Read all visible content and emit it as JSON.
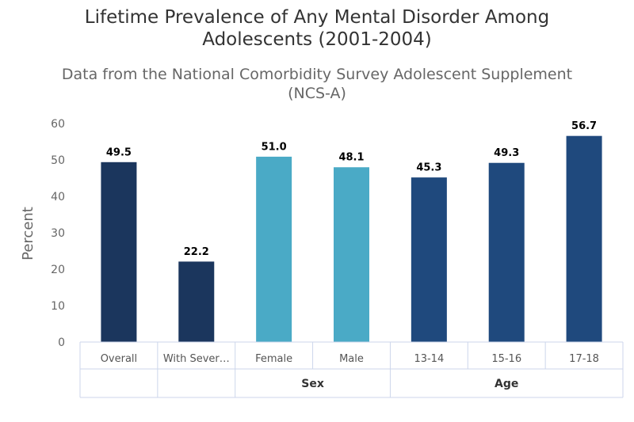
{
  "chart_data": {
    "type": "bar",
    "title_lines": [
      "Lifetime Prevalence of Any Mental Disorder Among",
      "Adolescents (2001-2004)"
    ],
    "subtitle_lines": [
      "Data from the National Comorbidity Survey Adolescent Supplement",
      "(NCS-A)"
    ],
    "ylabel": "Percent",
    "ylim": [
      0,
      60
    ],
    "yticks": [
      "0",
      "10",
      "20",
      "30",
      "40",
      "50",
      "60"
    ],
    "categories": [
      "Overall",
      "With Sever…",
      "Female",
      "Male",
      "13-14",
      "15-16",
      "17-18"
    ],
    "values": [
      49.5,
      22.2,
      51.0,
      48.1,
      45.3,
      49.3,
      56.7
    ],
    "value_labels": [
      "49.5",
      "22.2",
      "51.0",
      "48.1",
      "45.3",
      "49.3",
      "56.7"
    ],
    "bar_colors": [
      "#1b365d",
      "#1b365d",
      "#4aaac6",
      "#4aaac6",
      "#1f497d",
      "#1f497d",
      "#1f497d"
    ],
    "groups": [
      {
        "label": "",
        "span": 1
      },
      {
        "label": "",
        "span": 1
      },
      {
        "label": "Sex",
        "span": 2
      },
      {
        "label": "Age",
        "span": 3
      }
    ],
    "grid": false,
    "legend": "none"
  }
}
